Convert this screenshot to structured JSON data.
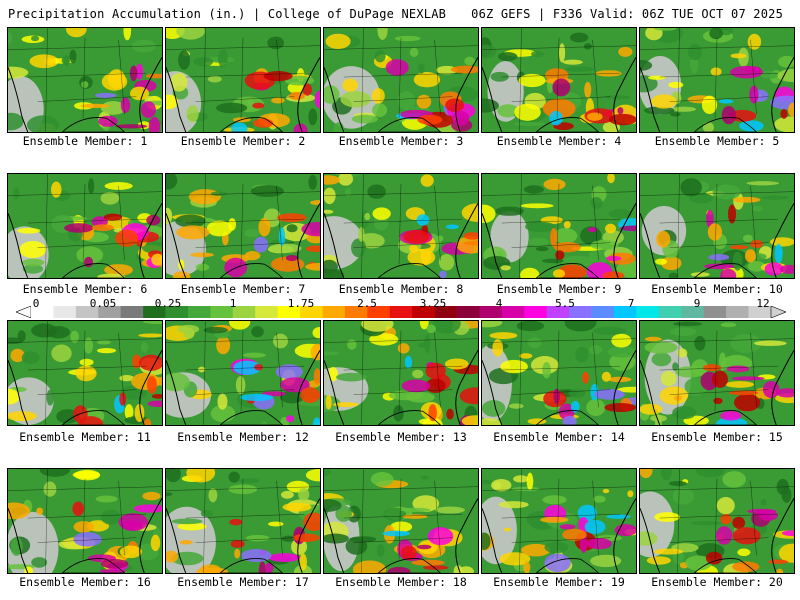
{
  "header": {
    "left": "Precipitation Accumulation (in.) | College of DuPage NEXLAB",
    "right": "06Z GEFS | F336 Valid: 06Z TUE OCT 07 2025"
  },
  "colorbar": {
    "labels": [
      "0",
      "0.05",
      "0.25",
      "1",
      "1.75",
      "2.5",
      "3.25",
      "4",
      "5.5",
      "7",
      "9",
      "12"
    ],
    "colors": [
      "#ffffff",
      "#e8e8e8",
      "#c4c4c4",
      "#a0a0a0",
      "#7a7a7a",
      "#1f6f1f",
      "#2f8f2f",
      "#44a83a",
      "#66c23c",
      "#9bd440",
      "#d6e83a",
      "#ffff00",
      "#ffd500",
      "#ffa800",
      "#ff7a00",
      "#ff4000",
      "#e81010",
      "#c00000",
      "#900010",
      "#8b0038",
      "#b00070",
      "#d800a8",
      "#ff00e0",
      "#c040ff",
      "#8a70ff",
      "#5a8cff",
      "#00c8ff",
      "#00e8e8",
      "#40d0b0",
      "#60b8a0",
      "#909090",
      "#b0b0b0",
      "#d0d0d0"
    ]
  },
  "members": [
    {
      "caption": "Ensemble Member: 1"
    },
    {
      "caption": "Ensemble Member: 2"
    },
    {
      "caption": "Ensemble Member: 3"
    },
    {
      "caption": "Ensemble Member: 4"
    },
    {
      "caption": "Ensemble Member: 5"
    },
    {
      "caption": "Ensemble Member: 6"
    },
    {
      "caption": "Ensemble Member: 7"
    },
    {
      "caption": "Ensemble Member: 8"
    },
    {
      "caption": "Ensemble Member: 9"
    },
    {
      "caption": "Ensemble Member: 10"
    },
    {
      "caption": "Ensemble Member: 11"
    },
    {
      "caption": "Ensemble Member: 12"
    },
    {
      "caption": "Ensemble Member: 13"
    },
    {
      "caption": "Ensemble Member: 14"
    },
    {
      "caption": "Ensemble Member: 15"
    },
    {
      "caption": "Ensemble Member: 16"
    },
    {
      "caption": "Ensemble Member: 17"
    },
    {
      "caption": "Ensemble Member: 18"
    },
    {
      "caption": "Ensemble Member: 19"
    },
    {
      "caption": "Ensemble Member: 20"
    }
  ]
}
